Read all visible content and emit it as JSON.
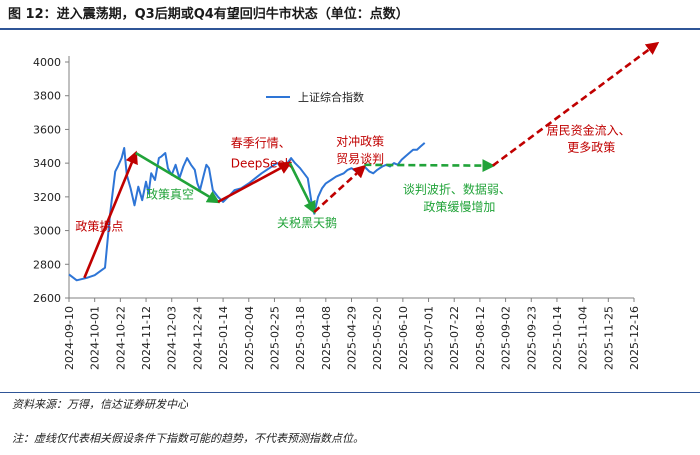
{
  "header": {
    "title": "图 12：进入震荡期，Q3后期或Q4有望回归牛市状态（单位：点数）"
  },
  "footer": {
    "source": "资料来源：万得，信达证券研发中心",
    "note": "注：虚线仅代表相关假设条件下指数可能的趋势，不代表预测指数点位。"
  },
  "colors": {
    "index_line": "#2e75d6",
    "red": "#c00000",
    "green": "#21a339",
    "axis": "#808080",
    "header_rule": "#2f5597"
  },
  "chart_data": {
    "type": "line",
    "title": "",
    "legend": {
      "position": "top-left",
      "label": "上证综合指数"
    },
    "ylim": [
      2600,
      4000
    ],
    "yticks": [
      "2600",
      "2800",
      "3000",
      "3200",
      "3400",
      "3600",
      "3800",
      "4000"
    ],
    "categories": [
      "2024-09-10",
      "2024-10-01",
      "2024-10-22",
      "2024-11-12",
      "2024-12-03",
      "2024-12-24",
      "2025-01-14",
      "2025-02-04",
      "2025-02-25",
      "2025-03-18",
      "2025-04-08",
      "2025-04-29",
      "2025-05-20",
      "2025-06-10",
      "2025-07-01",
      "2025-07-22",
      "2025-08-12",
      "2025-09-02",
      "2025-09-23",
      "2025-10-14",
      "2025-11-04",
      "2025-11-25",
      "2025-12-16"
    ],
    "series": [
      {
        "name": "上证综合指数",
        "points": [
          [
            0.0,
            2740
          ],
          [
            0.3,
            2705
          ],
          [
            0.7,
            2720
          ],
          [
            1.0,
            2735
          ],
          [
            1.4,
            2780
          ],
          [
            1.6,
            3100
          ],
          [
            1.8,
            3350
          ],
          [
            1.9,
            3380
          ],
          [
            2.05,
            3430
          ],
          [
            2.15,
            3490
          ],
          [
            2.25,
            3330
          ],
          [
            2.4,
            3250
          ],
          [
            2.55,
            3150
          ],
          [
            2.7,
            3260
          ],
          [
            2.85,
            3180
          ],
          [
            3.0,
            3290
          ],
          [
            3.1,
            3220
          ],
          [
            3.2,
            3340
          ],
          [
            3.35,
            3300
          ],
          [
            3.5,
            3430
          ],
          [
            3.6,
            3440
          ],
          [
            3.75,
            3460
          ],
          [
            3.85,
            3370
          ],
          [
            4.0,
            3330
          ],
          [
            4.15,
            3390
          ],
          [
            4.3,
            3310
          ],
          [
            4.45,
            3380
          ],
          [
            4.6,
            3430
          ],
          [
            4.75,
            3390
          ],
          [
            4.9,
            3360
          ],
          [
            5.0,
            3280
          ],
          [
            5.1,
            3240
          ],
          [
            5.25,
            3330
          ],
          [
            5.35,
            3390
          ],
          [
            5.45,
            3370
          ],
          [
            5.6,
            3240
          ],
          [
            5.8,
            3200
          ],
          [
            6.0,
            3170
          ],
          [
            6.2,
            3200
          ],
          [
            6.45,
            3240
          ],
          [
            6.7,
            3250
          ],
          [
            7.0,
            3280
          ],
          [
            7.25,
            3310
          ],
          [
            7.5,
            3340
          ],
          [
            7.8,
            3370
          ],
          [
            8.1,
            3400
          ],
          [
            8.35,
            3380
          ],
          [
            8.5,
            3400
          ],
          [
            8.65,
            3430
          ],
          [
            8.8,
            3400
          ],
          [
            9.0,
            3370
          ],
          [
            9.15,
            3340
          ],
          [
            9.3,
            3310
          ],
          [
            9.45,
            3160
          ],
          [
            9.55,
            3100
          ],
          [
            9.7,
            3200
          ],
          [
            9.85,
            3250
          ],
          [
            10.0,
            3280
          ],
          [
            10.2,
            3300
          ],
          [
            10.4,
            3320
          ],
          [
            10.55,
            3330
          ],
          [
            10.7,
            3340
          ],
          [
            10.85,
            3360
          ],
          [
            11.0,
            3370
          ],
          [
            11.2,
            3350
          ],
          [
            11.35,
            3360
          ],
          [
            11.5,
            3380
          ],
          [
            11.7,
            3350
          ],
          [
            11.85,
            3340
          ],
          [
            12.0,
            3360
          ],
          [
            12.2,
            3380
          ],
          [
            12.35,
            3390
          ],
          [
            12.5,
            3380
          ],
          [
            12.65,
            3400
          ],
          [
            12.8,
            3390
          ],
          [
            12.95,
            3420
          ],
          [
            13.1,
            3440
          ],
          [
            13.25,
            3460
          ],
          [
            13.4,
            3480
          ],
          [
            13.55,
            3480
          ],
          [
            13.7,
            3500
          ],
          [
            13.85,
            3520
          ]
        ]
      }
    ],
    "annotation_arrows": [
      {
        "color": "red",
        "dash": false,
        "from": [
          0.6,
          2720
        ],
        "to": [
          2.6,
          3460
        ]
      },
      {
        "color": "green",
        "dash": false,
        "from": [
          2.6,
          3460
        ],
        "to": [
          5.8,
          3170
        ]
      },
      {
        "color": "red",
        "dash": false,
        "from": [
          5.8,
          3170
        ],
        "to": [
          8.6,
          3400
        ]
      },
      {
        "color": "green",
        "dash": false,
        "from": [
          8.6,
          3400
        ],
        "to": [
          9.55,
          3110
        ]
      },
      {
        "color": "red",
        "dash": true,
        "from": [
          9.55,
          3110
        ],
        "to": [
          11.5,
          3380
        ]
      },
      {
        "color": "green",
        "dash": true,
        "from": [
          11.5,
          3390
        ],
        "to": [
          16.5,
          3385
        ]
      },
      {
        "color": "red",
        "dash": true,
        "from": [
          16.5,
          3385
        ],
        "to": [
          22.9,
          4110
        ]
      }
    ],
    "annotations": [
      {
        "text": "政策拐点",
        "color": "red",
        "at": [
          0.25,
          3000
        ]
      },
      {
        "text": "政策真空",
        "color": "green",
        "at": [
          3.0,
          3190
        ]
      },
      {
        "text": "春季行情、",
        "color": "red",
        "at": [
          6.3,
          3495
        ]
      },
      {
        "text": "DeepSeek",
        "color": "red",
        "at": [
          6.3,
          3375
        ]
      },
      {
        "text": "关税黑天鹅",
        "color": "green",
        "at": [
          8.1,
          3020
        ]
      },
      {
        "text": "对冲政策",
        "color": "red",
        "at": [
          10.4,
          3505
        ]
      },
      {
        "text": "贸易谈判",
        "color": "red",
        "at": [
          10.4,
          3400
        ]
      },
      {
        "text": "谈判波折、数据弱、",
        "color": "green",
        "at": [
          13.0,
          3220
        ]
      },
      {
        "text": "政策缓慢增加",
        "color": "green",
        "at": [
          13.8,
          3115
        ]
      },
      {
        "text": "居民资金流入、",
        "color": "red",
        "at": [
          18.6,
          3570
        ]
      },
      {
        "text": "更多政策",
        "color": "red",
        "at": [
          19.4,
          3470
        ]
      }
    ]
  }
}
